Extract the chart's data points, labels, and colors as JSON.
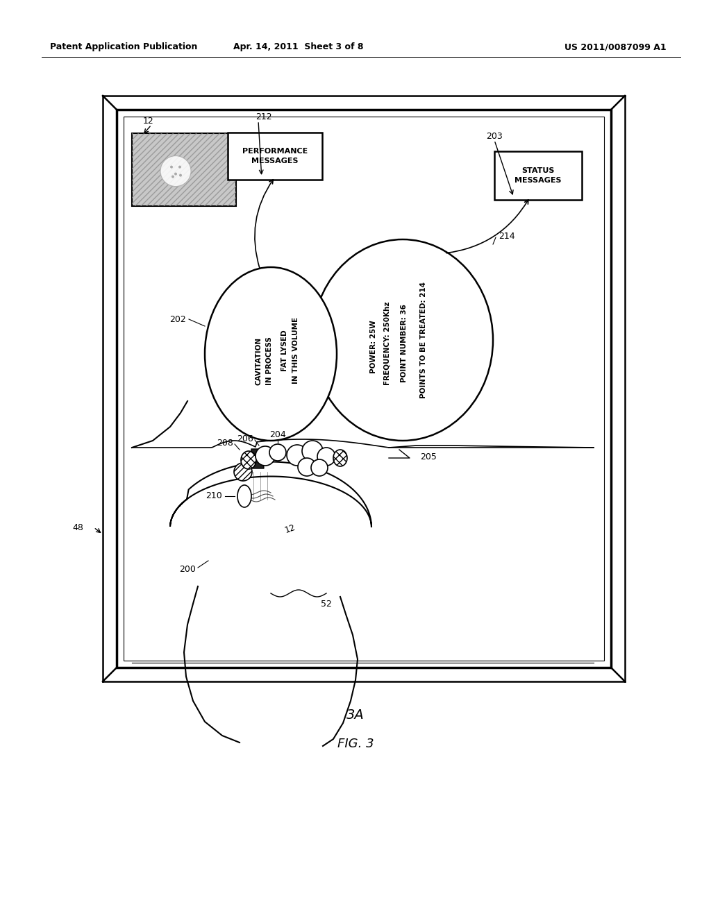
{
  "bg_color": "#ffffff",
  "header_left": "Patent Application Publication",
  "header_mid": "Apr. 14, 2011  Sheet 3 of 8",
  "header_right": "US 2011/0087099 A1",
  "fig_label_top": "3A",
  "fig_label_bottom": "FIG. 3",
  "ref_48": "48",
  "ref_12_top": "12",
  "ref_12_body": "12",
  "ref_52": "52",
  "ref_200": "200",
  "ref_202": "202",
  "ref_203": "203",
  "ref_204": "204",
  "ref_205": "205",
  "ref_206": "206",
  "ref_208": "208",
  "ref_210": "210",
  "ref_212": "212",
  "ref_214": "214",
  "perf_box_text": "PERFORMANCE\nMESSAGES",
  "status_box_text": "STATUS\nMESSAGES",
  "bubble1_line1": "CAVITATION",
  "bubble1_line2": "IN PROCESS",
  "bubble1_line3": "FAT LYSED",
  "bubble1_line4": "IN THIS VOLUME",
  "bubble2_line1": "POWER: 25W",
  "bubble2_line2": "FREQUENCY: 250Khz",
  "bubble2_line3": "POINT NUMBER: 36",
  "bubble2_line4": "POINTS TO BE TREATED: 214"
}
